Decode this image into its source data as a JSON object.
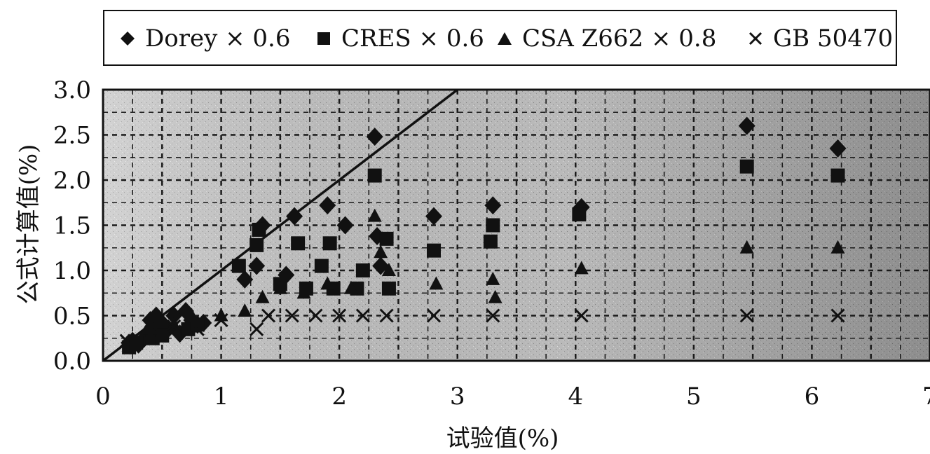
{
  "chart_data": {
    "type": "scatter",
    "title": "",
    "xlabel": "试验值(%)",
    "ylabel": "公式计算值(%)",
    "xlim": [
      0,
      7
    ],
    "ylim": [
      0,
      3
    ],
    "x_ticks": [
      "0",
      "1",
      "2",
      "3",
      "4",
      "5",
      "6",
      "7"
    ],
    "y_ticks": [
      "0.0",
      "0.5",
      "1.0",
      "1.5",
      "2.0",
      "2.5",
      "3.0"
    ],
    "grid": true,
    "legend_position": "top",
    "reference_line": {
      "from": [
        0,
        0
      ],
      "to": [
        3,
        3
      ]
    },
    "series": [
      {
        "name": "Dorey × 0.6",
        "marker": "diamond",
        "points": [
          [
            0.22,
            0.2
          ],
          [
            0.25,
            0.22
          ],
          [
            0.3,
            0.18
          ],
          [
            0.35,
            0.25
          ],
          [
            0.38,
            0.3
          ],
          [
            0.4,
            0.45
          ],
          [
            0.42,
            0.38
          ],
          [
            0.45,
            0.5
          ],
          [
            0.5,
            0.42
          ],
          [
            0.55,
            0.35
          ],
          [
            0.6,
            0.5
          ],
          [
            0.65,
            0.3
          ],
          [
            0.7,
            0.55
          ],
          [
            0.75,
            0.45
          ],
          [
            0.8,
            0.4
          ],
          [
            0.85,
            0.42
          ],
          [
            1.2,
            0.9
          ],
          [
            1.3,
            1.05
          ],
          [
            1.35,
            1.5
          ],
          [
            1.55,
            0.95
          ],
          [
            1.62,
            1.6
          ],
          [
            1.9,
            1.72
          ],
          [
            2.05,
            1.5
          ],
          [
            2.3,
            2.48
          ],
          [
            2.32,
            1.38
          ],
          [
            2.35,
            1.05
          ],
          [
            2.8,
            1.6
          ],
          [
            3.3,
            1.72
          ],
          [
            4.05,
            1.7
          ],
          [
            5.45,
            2.6
          ],
          [
            6.22,
            2.35
          ]
        ]
      },
      {
        "name": "CRES × 0.6",
        "marker": "square",
        "points": [
          [
            0.22,
            0.15
          ],
          [
            0.28,
            0.2
          ],
          [
            0.42,
            0.25
          ],
          [
            0.5,
            0.28
          ],
          [
            0.72,
            0.35
          ],
          [
            0.8,
            0.4
          ],
          [
            1.15,
            1.05
          ],
          [
            1.3,
            1.28
          ],
          [
            1.32,
            1.45
          ],
          [
            1.5,
            0.85
          ],
          [
            1.65,
            1.3
          ],
          [
            1.72,
            0.8
          ],
          [
            1.85,
            1.05
          ],
          [
            1.92,
            1.3
          ],
          [
            1.95,
            0.8
          ],
          [
            2.15,
            0.8
          ],
          [
            2.2,
            1.0
          ],
          [
            2.3,
            2.05
          ],
          [
            2.4,
            1.35
          ],
          [
            2.42,
            0.8
          ],
          [
            2.8,
            1.22
          ],
          [
            3.28,
            1.32
          ],
          [
            3.3,
            1.5
          ],
          [
            4.03,
            1.62
          ],
          [
            5.45,
            2.15
          ],
          [
            6.22,
            2.05
          ]
        ]
      },
      {
        "name": "CSA Z662 × 0.8",
        "marker": "triangle",
        "points": [
          [
            0.4,
            0.35
          ],
          [
            0.5,
            0.45
          ],
          [
            0.6,
            0.4
          ],
          [
            0.75,
            0.5
          ],
          [
            1.0,
            0.5
          ],
          [
            1.2,
            0.55
          ],
          [
            1.35,
            0.7
          ],
          [
            1.5,
            0.8
          ],
          [
            1.7,
            0.75
          ],
          [
            1.9,
            0.85
          ],
          [
            2.1,
            0.8
          ],
          [
            2.3,
            1.6
          ],
          [
            2.35,
            1.2
          ],
          [
            2.42,
            1.0
          ],
          [
            2.82,
            0.85
          ],
          [
            3.3,
            0.9
          ],
          [
            3.32,
            0.7
          ],
          [
            4.05,
            1.02
          ],
          [
            5.45,
            1.25
          ],
          [
            6.22,
            1.25
          ]
        ]
      },
      {
        "name": "GB 50470",
        "marker": "x",
        "points": [
          [
            0.2,
            0.22
          ],
          [
            0.4,
            0.3
          ],
          [
            0.6,
            0.38
          ],
          [
            0.8,
            0.35
          ],
          [
            1.0,
            0.45
          ],
          [
            1.3,
            0.35
          ],
          [
            1.4,
            0.5
          ],
          [
            1.6,
            0.5
          ],
          [
            1.8,
            0.5
          ],
          [
            2.0,
            0.5
          ],
          [
            2.2,
            0.5
          ],
          [
            2.4,
            0.5
          ],
          [
            2.8,
            0.5
          ],
          [
            3.3,
            0.5
          ],
          [
            4.05,
            0.5
          ],
          [
            5.45,
            0.5
          ],
          [
            6.22,
            0.5
          ]
        ]
      }
    ]
  }
}
